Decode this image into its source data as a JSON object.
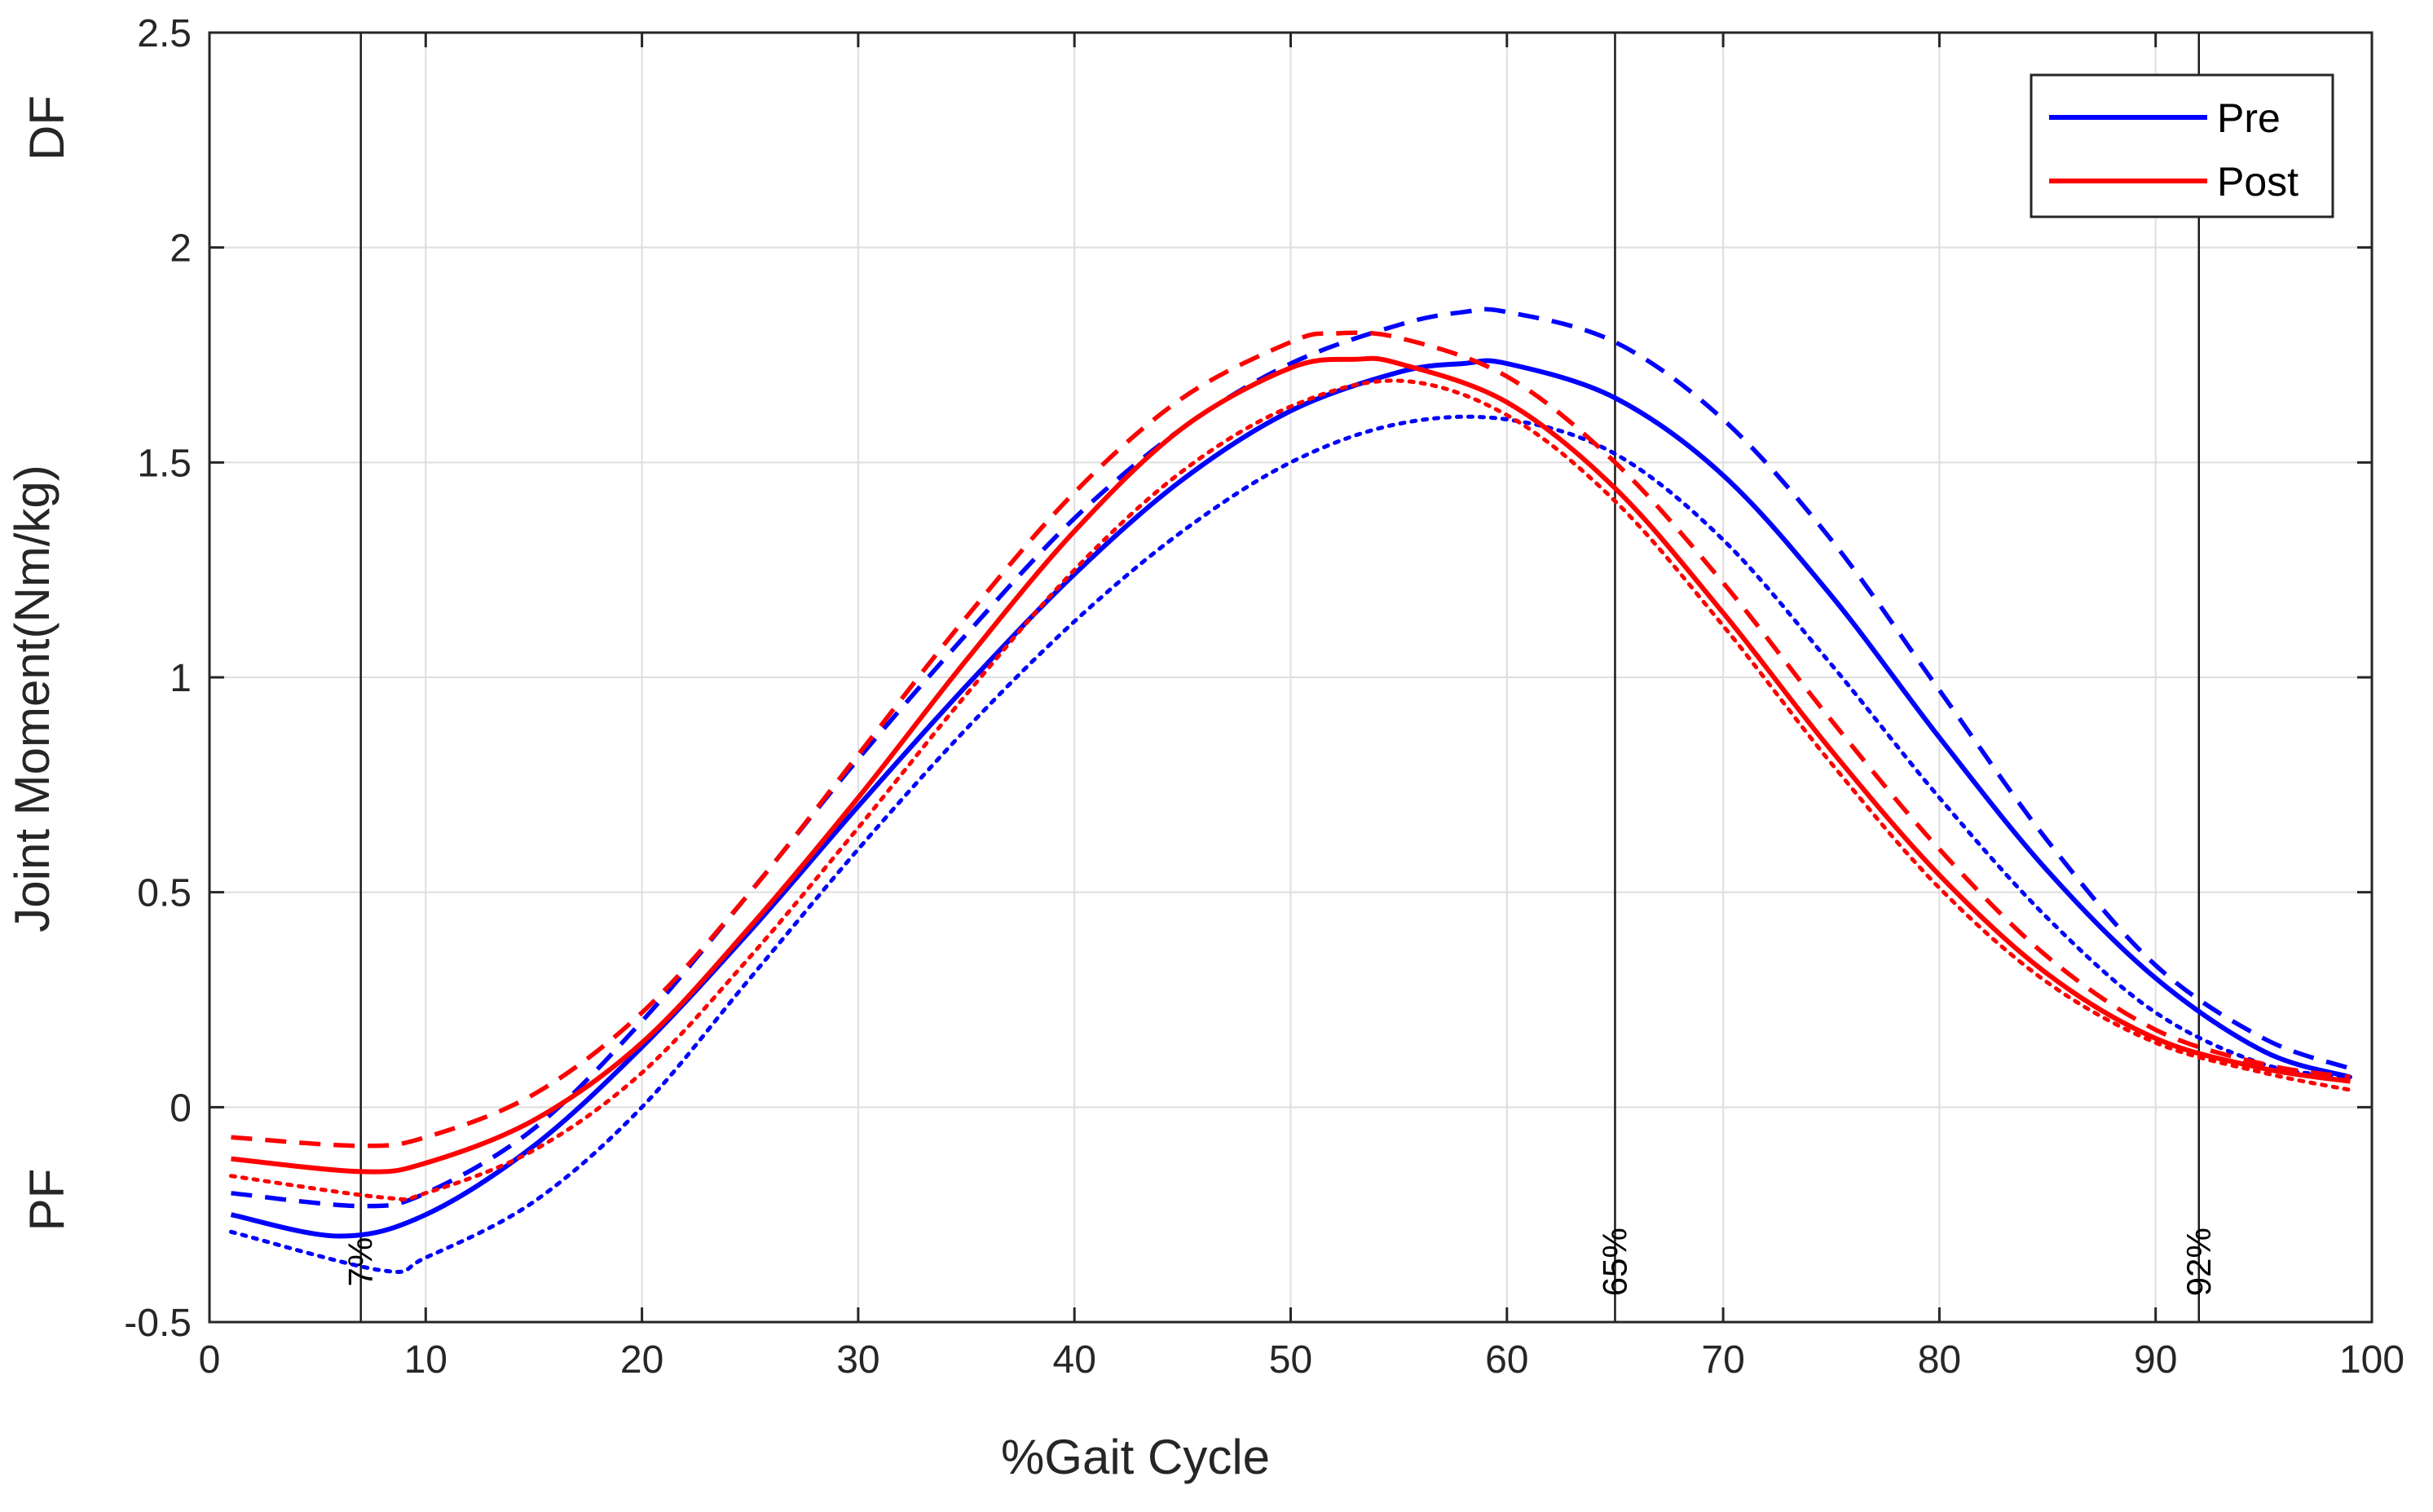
{
  "chart_data": {
    "type": "line",
    "title": "",
    "xlabel": "%Gait Cycle",
    "ylabel": "Joint Moment(Nm/kg)",
    "xlim": [
      0,
      100
    ],
    "ylim": [
      -0.5,
      2.5
    ],
    "xticks": [
      0,
      10,
      20,
      30,
      40,
      50,
      60,
      70,
      80,
      90,
      100
    ],
    "xtick_labels": [
      "0",
      "10",
      "20",
      "30",
      "40",
      "50",
      "60",
      "70",
      "80",
      "90",
      "100"
    ],
    "yticks": [
      -0.5,
      0,
      0.5,
      1,
      1.5,
      2,
      2.5
    ],
    "ytick_labels": [
      "-0.5",
      "0",
      "0.5",
      "1",
      "1.5",
      "2",
      "2.5"
    ],
    "grid": true,
    "side_labels": {
      "top": "DF",
      "bottom": "PF"
    },
    "vertical_markers": [
      {
        "x": 7,
        "label": "7%"
      },
      {
        "x": 65,
        "label": "65%"
      },
      {
        "x": 92,
        "label": "92%"
      }
    ],
    "legend": {
      "placement": "top-right",
      "entries": [
        {
          "label": "Pre",
          "color": "#0000ff"
        },
        {
          "label": "Post",
          "color": "#ff0000"
        }
      ]
    },
    "series": [
      {
        "name": "Pre mean",
        "group": "Pre",
        "style": "solid",
        "color": "#0000ff",
        "x": [
          1,
          6,
          10,
          15,
          20,
          25,
          30,
          35,
          40,
          45,
          50,
          55,
          58,
          60,
          65,
          70,
          75,
          80,
          85,
          90,
          95,
          99
        ],
        "y": [
          -0.25,
          -0.3,
          -0.25,
          -0.09,
          0.14,
          0.41,
          0.7,
          0.98,
          1.24,
          1.46,
          1.62,
          1.71,
          1.73,
          1.73,
          1.65,
          1.47,
          1.19,
          0.86,
          0.55,
          0.3,
          0.13,
          0.07
        ]
      },
      {
        "name": "Pre upper",
        "group": "Pre",
        "style": "dashed",
        "color": "#0000ff",
        "x": [
          1,
          7,
          10,
          15,
          20,
          25,
          30,
          35,
          40,
          45,
          50,
          55,
          58,
          60,
          65,
          70,
          75,
          80,
          85,
          90,
          95,
          99
        ],
        "y": [
          -0.2,
          -0.23,
          -0.2,
          -0.05,
          0.2,
          0.5,
          0.81,
          1.1,
          1.37,
          1.58,
          1.73,
          1.82,
          1.85,
          1.85,
          1.78,
          1.6,
          1.32,
          0.97,
          0.62,
          0.33,
          0.16,
          0.09
        ]
      },
      {
        "name": "Pre lower",
        "group": "Pre",
        "style": "dotted",
        "color": "#0000ff",
        "x": [
          1,
          8,
          10,
          15,
          20,
          25,
          30,
          35,
          40,
          45,
          50,
          55,
          60,
          65,
          70,
          75,
          80,
          85,
          90,
          95,
          99
        ],
        "y": [
          -0.29,
          -0.38,
          -0.35,
          -0.22,
          0.0,
          0.3,
          0.6,
          0.88,
          1.13,
          1.34,
          1.5,
          1.59,
          1.6,
          1.52,
          1.32,
          1.03,
          0.72,
          0.44,
          0.22,
          0.1,
          0.07
        ]
      },
      {
        "name": "Post mean",
        "group": "Post",
        "style": "solid",
        "color": "#ff0000",
        "x": [
          1,
          7,
          10,
          15,
          20,
          25,
          30,
          35,
          40,
          45,
          50,
          53,
          55,
          60,
          65,
          70,
          75,
          80,
          85,
          90,
          95,
          99
        ],
        "y": [
          -0.12,
          -0.15,
          -0.13,
          -0.03,
          0.15,
          0.42,
          0.72,
          1.04,
          1.34,
          1.58,
          1.72,
          1.74,
          1.73,
          1.64,
          1.44,
          1.15,
          0.83,
          0.54,
          0.31,
          0.16,
          0.09,
          0.06
        ]
      },
      {
        "name": "Post upper",
        "group": "Post",
        "style": "dashed",
        "color": "#ff0000",
        "x": [
          1,
          7,
          10,
          15,
          20,
          25,
          30,
          35,
          40,
          45,
          50,
          52,
          55,
          60,
          65,
          70,
          75,
          80,
          85,
          90,
          95,
          99
        ],
        "y": [
          -0.07,
          -0.09,
          -0.07,
          0.03,
          0.22,
          0.5,
          0.82,
          1.14,
          1.43,
          1.65,
          1.78,
          1.8,
          1.79,
          1.7,
          1.5,
          1.22,
          0.9,
          0.6,
          0.35,
          0.18,
          0.1,
          0.07
        ]
      },
      {
        "name": "Post lower",
        "group": "Post",
        "style": "dotted",
        "color": "#ff0000",
        "x": [
          1,
          8,
          10,
          15,
          20,
          25,
          30,
          35,
          40,
          45,
          50,
          55,
          60,
          65,
          70,
          75,
          80,
          85,
          90,
          95,
          99
        ],
        "y": [
          -0.16,
          -0.21,
          -0.2,
          -0.1,
          0.08,
          0.35,
          0.65,
          0.96,
          1.25,
          1.48,
          1.63,
          1.69,
          1.61,
          1.41,
          1.12,
          0.8,
          0.51,
          0.29,
          0.15,
          0.08,
          0.04
        ]
      }
    ]
  }
}
